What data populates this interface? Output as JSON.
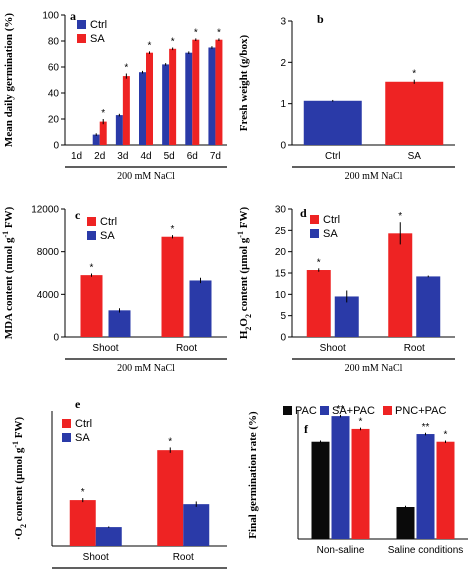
{
  "colors": {
    "ctrl": "#2a3aa8",
    "sa": "#ee2323",
    "pac": "#0a0a0a",
    "axis": "#000000"
  },
  "chart_data": [
    {
      "panel": "a",
      "type": "bar",
      "ylabel": "Mean daily germination (%)",
      "group_label": "200 mM NaCl",
      "categories": [
        "1d",
        "2d",
        "3d",
        "4d",
        "5d",
        "6d",
        "7d"
      ],
      "ylim": [
        0,
        100
      ],
      "yticks": [
        "0",
        "20",
        "40",
        "60",
        "80",
        "100"
      ],
      "legend_position": "top-left",
      "series": [
        {
          "name": "Ctrl",
          "color": "ctrl",
          "values": [
            0,
            8,
            23,
            56,
            62,
            71,
            75
          ],
          "errors": [
            0,
            1,
            1,
            1,
            1,
            1,
            1
          ]
        },
        {
          "name": "SA",
          "color": "sa",
          "values": [
            0,
            18,
            53,
            71,
            74,
            81,
            81
          ],
          "errors": [
            0,
            2,
            2,
            1,
            1,
            1,
            1
          ],
          "marks": [
            "",
            "*",
            "*",
            "*",
            "*",
            "*",
            "*"
          ]
        }
      ]
    },
    {
      "panel": "b",
      "type": "bar",
      "ylabel": "Fresh weight (g/box)",
      "group_label": "200 mM NaCl",
      "categories": [
        "Ctrl",
        "SA"
      ],
      "ylim": [
        0,
        3
      ],
      "yticks": [
        "0",
        "1",
        "2",
        "3"
      ],
      "bars": [
        {
          "color": "ctrl",
          "value": 1.07,
          "error": 0.02,
          "mark": ""
        },
        {
          "color": "sa",
          "value": 1.53,
          "error": 0.05,
          "mark": "*"
        }
      ]
    },
    {
      "panel": "c",
      "type": "bar",
      "ylabel_main": "MDA content (nmol g",
      "ylabel_sup": "-1",
      "ylabel_end": " FW)",
      "group_label": "200 mM NaCl",
      "categories": [
        "Shoot",
        "Root"
      ],
      "ylim": [
        0,
        12000
      ],
      "yticks": [
        "0",
        "4000",
        "8000",
        "12000"
      ],
      "legend_position": "top-left",
      "series": [
        {
          "name": "Ctrl",
          "color": "sa",
          "values": [
            5800,
            9400
          ],
          "errors": [
            150,
            150
          ],
          "marks": [
            "*",
            "*"
          ]
        },
        {
          "name": "SA",
          "color": "ctrl",
          "values": [
            2500,
            5300
          ],
          "errors": [
            200,
            250
          ],
          "marks": [
            "",
            ""
          ]
        }
      ]
    },
    {
      "panel": "d",
      "type": "bar",
      "ylabel_main": "H",
      "ylabel_sub": "2",
      "ylabel_mid": "O",
      "ylabel_sub2": "2",
      "ylabel_rest": " content (µmol g",
      "ylabel_sup": "-1",
      "ylabel_end": " FW)",
      "group_label": "200 mM NaCl",
      "categories": [
        "Shoot",
        "Root"
      ],
      "ylim": [
        0,
        30
      ],
      "yticks": [
        "0",
        "5",
        "10",
        "15",
        "20",
        "25",
        "30"
      ],
      "legend_position": "top-left",
      "series": [
        {
          "name": "Ctrl",
          "color": "sa",
          "values": [
            15.7,
            24.3
          ],
          "errors": [
            0.4,
            2.6
          ],
          "marks": [
            "*",
            "*"
          ]
        },
        {
          "name": "SA",
          "color": "ctrl",
          "values": [
            9.5,
            14.2
          ],
          "errors": [
            1.4,
            0.2
          ],
          "marks": [
            "",
            ""
          ]
        }
      ]
    },
    {
      "panel": "e",
      "type": "bar",
      "ylabel_pre": "·",
      "ylabel_main": "O",
      "ylabel_sub": "2",
      "ylabel_rest": " content (µmol g",
      "ylabel_sup": "-1",
      "ylabel_end": " FW)",
      "group_label": "200 mM NaCl",
      "categories": [
        "Shoot",
        "Root"
      ],
      "ylim": [
        0,
        10
      ],
      "yticks": [],
      "legend_position": "top-left",
      "series": [
        {
          "name": "Ctrl",
          "color": "sa",
          "values": [
            3.4,
            7.1
          ],
          "errors": [
            0.15,
            0.2
          ],
          "marks": [
            "*",
            "*"
          ]
        },
        {
          "name": "SA",
          "color": "ctrl",
          "values": [
            1.4,
            3.1
          ],
          "errors": [
            0.05,
            0.2
          ],
          "marks": [
            "",
            ""
          ]
        }
      ]
    },
    {
      "panel": "f",
      "type": "bar",
      "ylabel": "Final germination rate (%)",
      "categories": [
        "Non-saline",
        "Saline conditions"
      ],
      "ylim": [
        0,
        100
      ],
      "yticks": [],
      "legend_position": "top",
      "series": [
        {
          "name": "PAC",
          "color": "pac",
          "values": [
            76,
            25
          ],
          "errors": [
            1,
            1
          ],
          "marks": [
            "",
            ""
          ]
        },
        {
          "name": "SA+PAC",
          "color": "ctrl",
          "values": [
            96,
            82
          ],
          "errors": [
            1,
            1
          ],
          "marks": [
            "**",
            "**"
          ]
        },
        {
          "name": "PNC+PAC",
          "color": "sa",
          "values": [
            86,
            76
          ],
          "errors": [
            1,
            1
          ],
          "marks": [
            "*",
            "*"
          ]
        }
      ]
    }
  ]
}
